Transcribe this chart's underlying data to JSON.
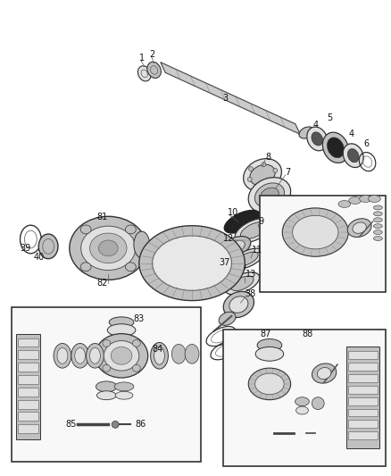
{
  "bg_color": "#ffffff",
  "fig_width": 4.38,
  "fig_height": 5.33,
  "dpi": 100,
  "shaft_color": "#d8d8d8",
  "part_edge": "#333333",
  "part_fill_light": "#e0e0e0",
  "part_fill_mid": "#c0c0c0",
  "part_fill_dark": "#888888",
  "part_fill_black": "#222222"
}
